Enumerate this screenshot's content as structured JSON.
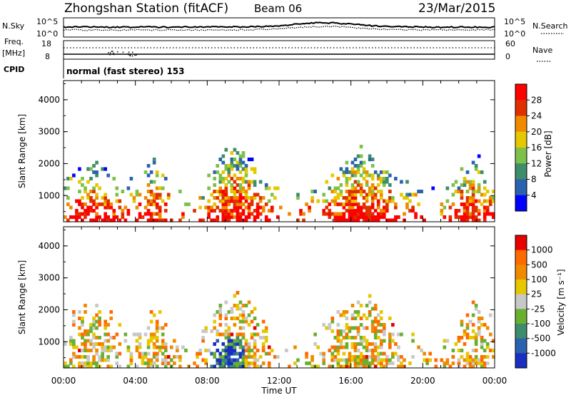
{
  "header": {
    "station_title": "Zhongshan Station (fitACF)",
    "beam_label": "Beam 06",
    "date_label": "23/Mar/2015"
  },
  "status_panels": {
    "nsky_label": "N.Sky",
    "nsky_ticks": [
      "10^5",
      "10^0"
    ],
    "nsearch_label": "N.Search",
    "nsearch_ticks": [
      "10^5",
      "10^0"
    ],
    "freq_label": "Freq.",
    "freq_unit": "[MHz]",
    "freq_ticks": [
      "18",
      "8"
    ],
    "nave_label": "Nave",
    "nave_ticks": [
      "60",
      "0"
    ],
    "cpid_label": "CPID",
    "cpid_text": "normal (fast stereo) 153"
  },
  "chart_data": [
    {
      "type": "heatmap",
      "name": "power-panel",
      "ylabel": "Slant Range [km]",
      "xlabel": "",
      "y_ticks": [
        1000,
        2000,
        3000,
        4000
      ],
      "ylim": [
        180,
        4600
      ],
      "x_ticks": [
        "00:00",
        "04:00",
        "08:00",
        "12:00",
        "16:00",
        "20:00",
        "00:00"
      ],
      "colorbar": {
        "label": "Power [dB]",
        "ticks": [
          "4",
          "8",
          "12",
          "16",
          "20",
          "24",
          "28"
        ],
        "colors": [
          "#0000ff",
          "#2a62b0",
          "#3d8c6a",
          "#7cc14a",
          "#e6c800",
          "#f08a00",
          "#e03000",
          "#ff0000"
        ],
        "range": [
          0,
          32
        ]
      }
    },
    {
      "type": "heatmap",
      "name": "velocity-panel",
      "ylabel": "Slant Range [km]",
      "xlabel": "Time UT",
      "y_ticks": [
        1000,
        2000,
        3000,
        4000
      ],
      "ylim": [
        180,
        4600
      ],
      "x_ticks": [
        "00:00",
        "04:00",
        "08:00",
        "12:00",
        "16:00",
        "20:00",
        "00:00"
      ],
      "colorbar": {
        "label": "Velocity [m s⁻¹]",
        "ticks": [
          "1000",
          "500",
          "100",
          "25",
          "-25",
          "-100",
          "-500",
          "-1000"
        ],
        "colors": [
          "#1a2fc0",
          "#2a62b0",
          "#3d8c6a",
          "#6ab030",
          "#c8c8c8",
          "#e6c800",
          "#f08a00",
          "#ff6a00",
          "#e60000"
        ]
      }
    }
  ]
}
